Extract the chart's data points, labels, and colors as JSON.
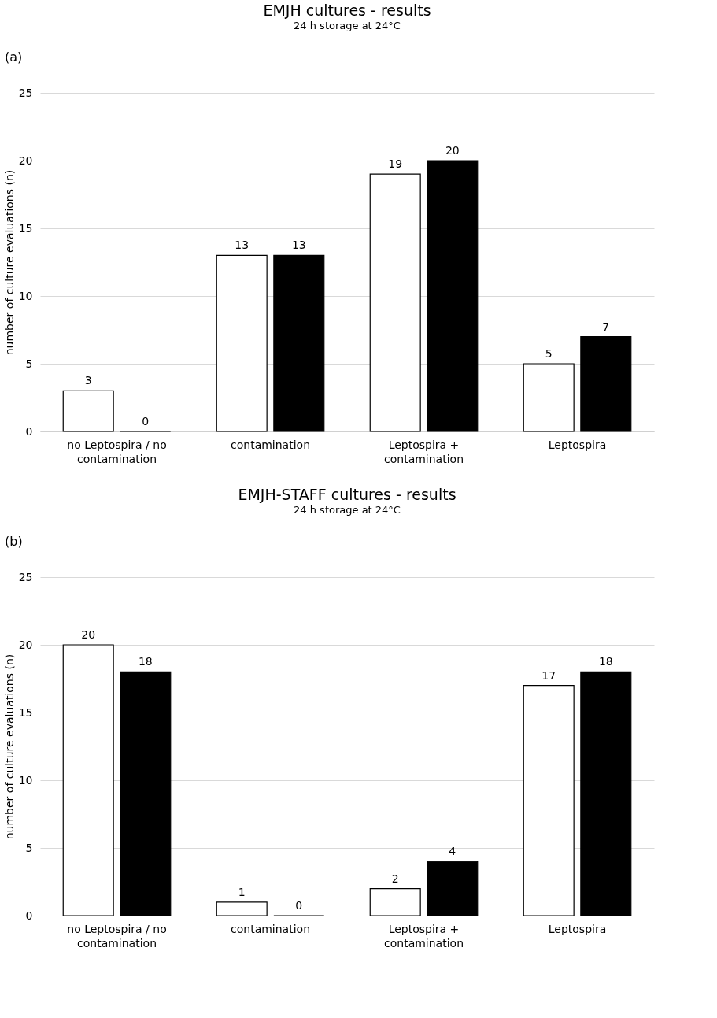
{
  "chart_data": [
    {
      "type": "bar",
      "title": "EMJH cultures - results",
      "subtitle": "24 h storage at 24°C",
      "ylabel": "number of culture evaluations (n)",
      "annotations": [
        "(a)"
      ],
      "categories": [
        "no Leptospira / no contamination",
        "contamination",
        "Leptospira + contamination",
        "Leptospira"
      ],
      "series": [
        {
          "color": "#ffffff",
          "values": [
            3,
            13,
            19,
            5
          ]
        },
        {
          "color": "#000000",
          "values": [
            0,
            13,
            20,
            7
          ]
        }
      ],
      "ylim": [
        0,
        25
      ],
      "yticks": [
        0,
        5,
        10,
        15,
        20,
        25
      ],
      "grid": "y",
      "legend": false,
      "data_labels": true
    },
    {
      "type": "bar",
      "title": "EMJH-STAFF cultures - results",
      "subtitle": "24 h storage at 24°C",
      "ylabel": "number of culture evaluations (n)",
      "annotations": [
        "(b)"
      ],
      "categories": [
        "no Leptospira / no contamination",
        "contamination",
        "Leptospira + contamination",
        "Leptospira"
      ],
      "series": [
        {
          "color": "#ffffff",
          "values": [
            20,
            1,
            2,
            17
          ]
        },
        {
          "color": "#000000",
          "values": [
            18,
            0,
            4,
            18
          ]
        }
      ],
      "ylim": [
        0,
        25
      ],
      "yticks": [
        0,
        5,
        10,
        15,
        20,
        25
      ],
      "grid": "y",
      "legend": false,
      "data_labels": true
    }
  ]
}
